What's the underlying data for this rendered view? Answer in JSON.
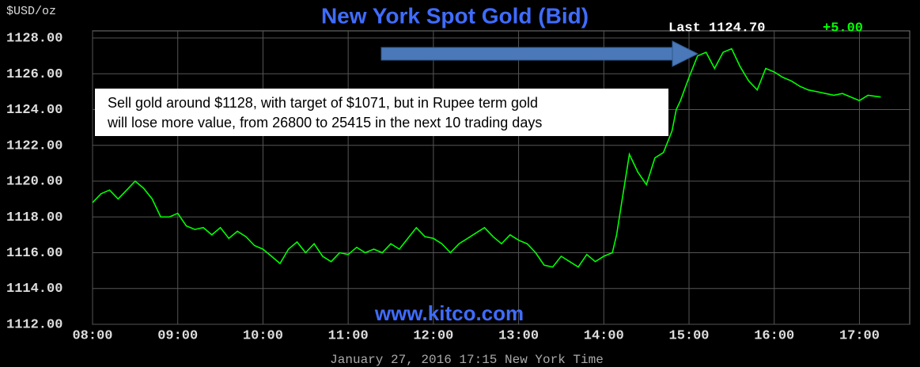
{
  "chart_data": {
    "type": "line",
    "title": "New York Spot Gold (Bid)",
    "y_axis_label": "$USD/oz",
    "last_label": "Last 1124.70",
    "change_label": "+5.00",
    "watermark": "www.kitco.com",
    "footer": "January 27, 2016 17:15 New York Time",
    "annotation": [
      "Sell gold around $1128, with target of $1071, but in Rupee term gold",
      "will lose more value, from 26800 to 25415 in the next 10 trading days"
    ],
    "grid": true,
    "color": "#00ff00",
    "xlim": [
      8,
      17.59
    ],
    "ylim": [
      1112,
      1128.4
    ],
    "xticks": [
      {
        "value": 8,
        "label": "08:00"
      },
      {
        "value": 9,
        "label": "09:00"
      },
      {
        "value": 10,
        "label": "10:00"
      },
      {
        "value": 11,
        "label": "11:00"
      },
      {
        "value": 12,
        "label": "12:00"
      },
      {
        "value": 13,
        "label": "13:00"
      },
      {
        "value": 14,
        "label": "14:00"
      },
      {
        "value": 15,
        "label": "15:00"
      },
      {
        "value": 16,
        "label": "16:00"
      },
      {
        "value": 17,
        "label": "17:00"
      }
    ],
    "yticks": [
      {
        "value": 1112,
        "label": "1112.00"
      },
      {
        "value": 1114,
        "label": "1114.00"
      },
      {
        "value": 1116,
        "label": "1116.00"
      },
      {
        "value": 1118,
        "label": "1118.00"
      },
      {
        "value": 1120,
        "label": "1120.00"
      },
      {
        "value": 1122,
        "label": "1122.00"
      },
      {
        "value": 1124,
        "label": "1124.00"
      },
      {
        "value": 1126,
        "label": "1126.00"
      },
      {
        "value": 1128,
        "label": "1128.00"
      }
    ],
    "x": [
      8.0,
      8.1,
      8.2,
      8.3,
      8.4,
      8.5,
      8.6,
      8.7,
      8.8,
      8.9,
      9.0,
      9.1,
      9.2,
      9.3,
      9.4,
      9.5,
      9.6,
      9.7,
      9.8,
      9.9,
      10.0,
      10.1,
      10.2,
      10.3,
      10.4,
      10.5,
      10.6,
      10.7,
      10.8,
      10.9,
      11.0,
      11.1,
      11.2,
      11.3,
      11.4,
      11.5,
      11.6,
      11.7,
      11.8,
      11.9,
      12.0,
      12.1,
      12.2,
      12.3,
      12.4,
      12.5,
      12.6,
      12.7,
      12.8,
      12.9,
      13.0,
      13.1,
      13.2,
      13.3,
      13.4,
      13.5,
      13.6,
      13.7,
      13.8,
      13.9,
      14.0,
      14.1,
      14.15,
      14.2,
      14.3,
      14.4,
      14.5,
      14.6,
      14.7,
      14.8,
      14.85,
      14.9,
      15.0,
      15.1,
      15.2,
      15.3,
      15.4,
      15.5,
      15.6,
      15.7,
      15.8,
      15.9,
      16.0,
      16.1,
      16.2,
      16.3,
      16.4,
      16.5,
      16.6,
      16.7,
      16.8,
      16.9,
      17.0,
      17.1,
      17.25
    ],
    "values": [
      1118.8,
      1119.3,
      1119.5,
      1119.0,
      1119.5,
      1120.0,
      1119.6,
      1119.0,
      1118.0,
      1118.0,
      1118.2,
      1117.5,
      1117.3,
      1117.4,
      1117.0,
      1117.4,
      1116.8,
      1117.2,
      1116.9,
      1116.4,
      1116.2,
      1115.8,
      1115.4,
      1116.2,
      1116.6,
      1116.0,
      1116.5,
      1115.8,
      1115.5,
      1116.0,
      1115.9,
      1116.3,
      1116.0,
      1116.2,
      1116.0,
      1116.5,
      1116.2,
      1116.8,
      1117.4,
      1116.9,
      1116.8,
      1116.5,
      1116.0,
      1116.5,
      1116.8,
      1117.1,
      1117.4,
      1116.9,
      1116.5,
      1117.0,
      1116.7,
      1116.5,
      1116.0,
      1115.3,
      1115.2,
      1115.8,
      1115.5,
      1115.2,
      1115.9,
      1115.5,
      1115.8,
      1116.0,
      1117.0,
      1118.5,
      1121.5,
      1120.5,
      1119.8,
      1121.3,
      1121.6,
      1122.8,
      1124.0,
      1124.5,
      1125.8,
      1127.0,
      1127.2,
      1126.3,
      1127.2,
      1127.4,
      1126.4,
      1125.6,
      1125.1,
      1126.3,
      1126.1,
      1125.8,
      1125.6,
      1125.3,
      1125.1,
      1125.0,
      1124.9,
      1124.8,
      1124.9,
      1124.7,
      1124.5,
      1124.8,
      1124.7
    ]
  }
}
